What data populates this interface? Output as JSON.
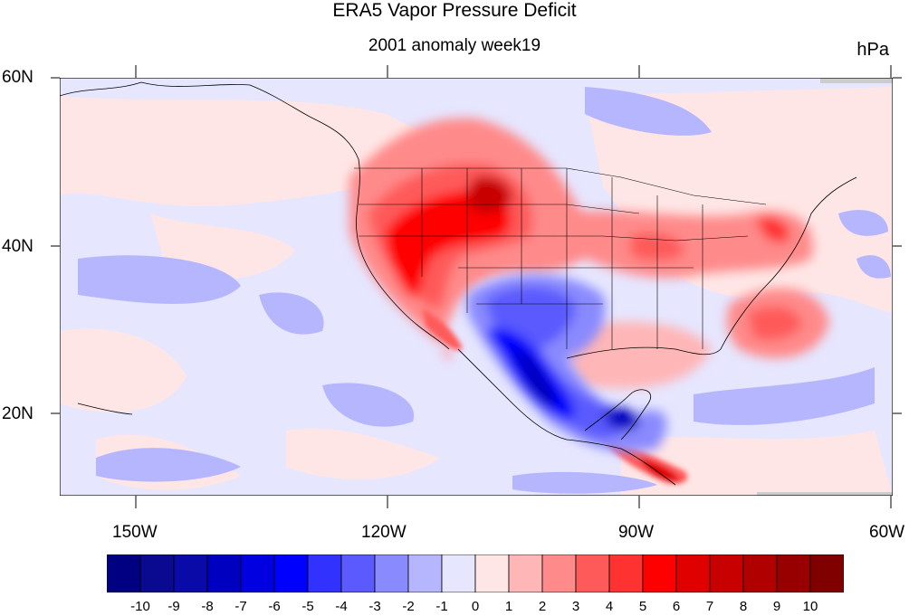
{
  "title": "ERA5 Vapor Pressure Deficit",
  "subtitle": "2001 anomaly week19",
  "units": "hPa",
  "lon_labels": [
    "150W",
    "120W",
    "90W",
    "60W"
  ],
  "lat_labels": [
    "60N",
    "40N",
    "20N"
  ],
  "colorbar": {
    "labels": [
      "-10",
      "-9",
      "-8",
      "-7",
      "-6",
      "-5",
      "-4",
      "-3",
      "-2",
      "-1",
      "0",
      "1",
      "2",
      "3",
      "4",
      "5",
      "6",
      "7",
      "8",
      "9",
      "10"
    ],
    "colors": [
      "#000080",
      "#0a0a90",
      "#0a0aa8",
      "#0000c0",
      "#0000e0",
      "#0000ff",
      "#3232ff",
      "#5a5aff",
      "#8a8aff",
      "#b6b6ff",
      "#e6e6ff",
      "#ffe6e6",
      "#ffb6b6",
      "#ff8a8a",
      "#ff5a5a",
      "#ff3232",
      "#ff0000",
      "#e00000",
      "#c80000",
      "#b00000",
      "#980000",
      "#800000"
    ]
  },
  "map": {
    "lon_range": [
      "160W",
      "60W"
    ],
    "lat_range": [
      "10N",
      "60N"
    ],
    "background_anomaly_color": "#e6e6ff"
  }
}
